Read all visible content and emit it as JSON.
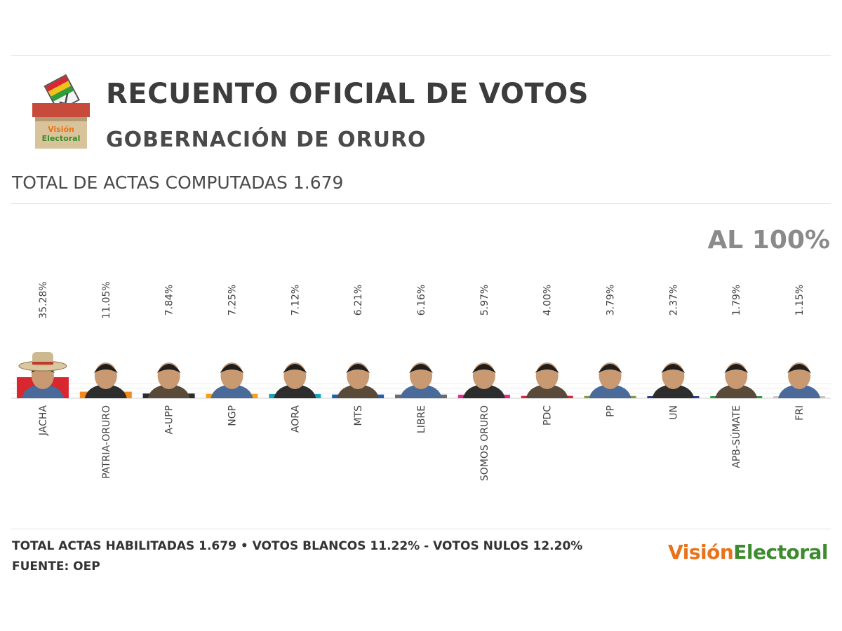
{
  "header": {
    "title": "RECUENTO OFICIAL DE VOTOS",
    "subtitle": "GOBERNACIÓN DE ORURO",
    "logo_text_1": "Visión",
    "logo_text_2": "Electoral"
  },
  "actas_computadas": "TOTAL DE ACTAS COMPUTADAS 1.679",
  "progress": "AL 100%",
  "footer": {
    "line1": "TOTAL ACTAS HABILITADAS 1.679 • VOTOS BLANCOS 11.22% - VOTOS NULOS 12.20%",
    "line2": "FUENTE: OEP",
    "brand_1": "Visión",
    "brand_2": "Electoral"
  },
  "colors": {
    "brand_orange": "#e8731a",
    "brand_green": "#3d8b2e",
    "baseline": "#cfcfcf"
  },
  "chart_data": {
    "type": "bar",
    "title": "",
    "xlabel": "",
    "ylabel": "",
    "ylim": [
      0,
      100
    ],
    "unit": "%",
    "categories": [
      "JACHA",
      "PATRIA-ORURO",
      "A-UPP",
      "NGP",
      "AORA",
      "MTS",
      "LIBRE",
      "SOMOS ORURO",
      "PDC",
      "PP",
      "UN",
      "APB-SÚMATE",
      "FRI"
    ],
    "values": [
      35.28,
      11.05,
      7.84,
      7.25,
      7.12,
      6.21,
      6.16,
      5.97,
      4.0,
      3.79,
      2.37,
      1.79,
      1.15
    ],
    "labels": [
      "35.28%",
      "11.05%",
      "7.84%",
      "7.25%",
      "7.12%",
      "6.21%",
      "6.16%",
      "5.97%",
      "4.00%",
      "3.79%",
      "2.37%",
      "1.79%",
      "1.15%"
    ],
    "bar_colors": [
      "#d8272e",
      "#f08a1c",
      "#2d2d2d",
      "#f2a31b",
      "#1aa3b5",
      "#1f5fb0",
      "#6b6b6b",
      "#e02a8f",
      "#d12a3a",
      "#8a9a3a",
      "#2b3f8c",
      "#2f9d3a",
      "#c9c9c9"
    ],
    "marker_icon": "candidate-photo"
  }
}
